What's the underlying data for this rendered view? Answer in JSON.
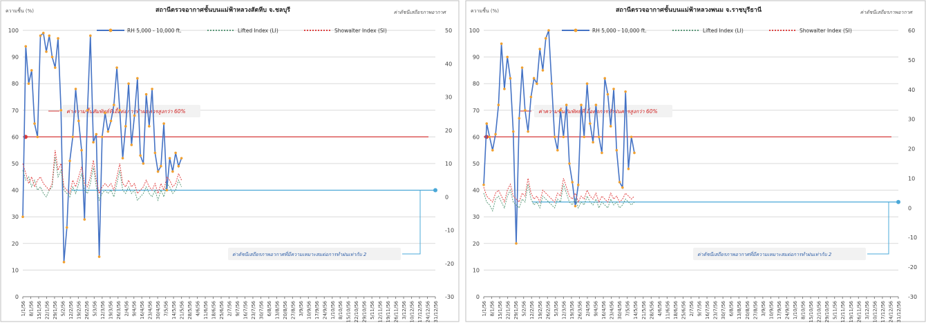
{
  "chart_data": [
    {
      "type": "line",
      "title": "สถานีตรวจอากาศชั้นบนแม่ฟ้าหลวงสัตหีบ จ.ชลบุรี",
      "right_note": "ค่าดัชนีเสถียรภาพอากาศ",
      "y_left_unit": "ความชื้น (%)",
      "ylim_left": [
        0,
        100
      ],
      "ylim_right": [
        -30,
        50
      ],
      "left_ticks": [
        0,
        10,
        20,
        30,
        40,
        50,
        60,
        70,
        80,
        90,
        100
      ],
      "right_ticks": [
        -30,
        -20,
        -10,
        0,
        10,
        20,
        30,
        40,
        50
      ],
      "x_ticks": [
        "1/1/56",
        "8/1/56",
        "15/1/56",
        "22/1/56",
        "29/1/56",
        "5/2/56",
        "12/2/56",
        "19/2/56",
        "26/2/56",
        "5/3/56",
        "12/3/56",
        "19/3/56",
        "26/3/56",
        "2/4/56",
        "9/4/56",
        "16/4/56",
        "23/4/56",
        "30/4/56",
        "7/5/56",
        "14/5/56",
        "21/5/56",
        "28/5/56",
        "4/6/56",
        "11/6/56",
        "18/6/56",
        "25/6/56",
        "2/7/56",
        "9/7/56",
        "16/7/56",
        "23/7/56",
        "30/7/56",
        "6/8/56",
        "13/8/56",
        "20/8/56",
        "27/8/56",
        "3/9/56",
        "10/9/56",
        "17/9/56",
        "24/9/56",
        "1/10/56",
        "8/10/56",
        "15/10/56",
        "22/10/56",
        "29/10/56",
        "5/11/56",
        "12/11/56",
        "19/11/56",
        "26/11/56",
        "3/12/56",
        "10/12/56",
        "17/12/56",
        "24/12/56",
        "31/12/56"
      ],
      "legend": [
        "RH 5,000 - 10,000 ft.",
        "Lifted Index (LI)",
        "Showalter Index (SI)"
      ],
      "rh_threshold": 60,
      "rh_threshold_label": "ค่าความชื้นสัมพัทธ์ที่เอื้อต่อการทำฝนควรสูงกว่า 60%",
      "stability_threshold": 2,
      "stability_threshold_label": "ค่าดัชนีเสถียรภาพอากาศที่มีความเหมาะสมต่อการทำฝนเท่ากับ 2",
      "series": [
        {
          "name": "RH 5,000 - 10,000 ft.",
          "axis": "left",
          "values": [
            30,
            94,
            80,
            85,
            65,
            60,
            98,
            99,
            92,
            98,
            90,
            86,
            97,
            70,
            13,
            26,
            51,
            60,
            78,
            66,
            55,
            29,
            70,
            98,
            58,
            61,
            15,
            60,
            69,
            62,
            66,
            72,
            86,
            70,
            52,
            64,
            80,
            57,
            68,
            82,
            53,
            50,
            76,
            64,
            78,
            54,
            47,
            49,
            65,
            40,
            52,
            47,
            54,
            49,
            52
          ]
        },
        {
          "name": "Lifted Index (LI)",
          "axis": "right",
          "values": [
            8,
            5,
            6,
            3,
            5,
            2,
            3,
            1,
            0,
            2,
            3,
            12,
            6,
            8,
            2,
            1,
            0,
            3,
            1,
            4,
            7,
            2,
            1,
            4,
            9,
            3,
            -1,
            1,
            2,
            1,
            2,
            0,
            4,
            8,
            2,
            1,
            3,
            1,
            2,
            -1,
            0,
            1,
            3,
            1,
            0,
            2,
            -1,
            2,
            0,
            4,
            3,
            1,
            2,
            5,
            3
          ]
        },
        {
          "name": "Showalter Index (SI)",
          "axis": "right",
          "values": [
            10,
            7,
            4,
            6,
            3,
            5,
            6,
            4,
            3,
            2,
            4,
            14,
            8,
            10,
            3,
            2,
            1,
            5,
            3,
            6,
            9,
            4,
            3,
            6,
            11,
            5,
            1,
            3,
            4,
            3,
            4,
            2,
            6,
            10,
            4,
            3,
            5,
            3,
            4,
            1,
            2,
            3,
            5,
            3,
            2,
            4,
            1,
            4,
            2,
            6,
            5,
            3,
            4,
            7,
            5
          ]
        }
      ]
    },
    {
      "type": "line",
      "title": "สถานีตรวจอากาศชั้นบนแม่ฟ้าหลวงพนม จ.ราชบุรีธานี",
      "right_note": "ค่าดัชนีเสถียรภาพอากาศ",
      "y_left_unit": "ความชื้น (%)",
      "ylim_left": [
        0,
        100
      ],
      "ylim_right": [
        -30,
        60
      ],
      "left_ticks": [
        0,
        10,
        20,
        30,
        40,
        50,
        60,
        70,
        80,
        90,
        100
      ],
      "right_ticks": [
        -30,
        -20,
        -10,
        0,
        10,
        20,
        30,
        40,
        50,
        60
      ],
      "x_ticks": [
        "1/1/56",
        "8/1/56",
        "15/1/56",
        "22/1/56",
        "29/1/56",
        "5/2/56",
        "12/2/56",
        "19/2/56",
        "26/2/56",
        "5/3/56",
        "12/3/56",
        "19/3/56",
        "26/3/56",
        "2/4/56",
        "9/4/56",
        "16/4/56",
        "23/4/56",
        "30/4/56",
        "7/5/56",
        "14/5/56",
        "21/5/56",
        "28/5/56",
        "4/6/56",
        "11/6/56",
        "18/6/56",
        "25/6/56",
        "2/7/56",
        "9/7/56",
        "16/7/56",
        "23/7/56",
        "30/7/56",
        "6/8/56",
        "13/8/56",
        "20/8/56",
        "27/8/56",
        "3/9/56",
        "10/9/56",
        "17/9/56",
        "24/9/56",
        "1/10/56",
        "8/10/56",
        "15/10/56",
        "22/10/56",
        "29/10/56",
        "5/11/56",
        "12/11/56",
        "19/11/56",
        "26/11/56",
        "3/12/56",
        "10/12/56",
        "17/12/56",
        "24/12/56",
        "31/12/56"
      ],
      "legend": [
        "RH 5,000 - 10,000 ft.",
        "Lifted Index (LI)",
        "Showalter Index (SI)"
      ],
      "rh_threshold": 60,
      "rh_threshold_label": "ค่าความชื้นสัมพัทธ์ที่เอื้อต่อการทำฝนควรสูงกว่า 60%",
      "stability_threshold": 2,
      "stability_threshold_label": "ค่าดัชนีเสถียรภาพอากาศที่มีความเหมาะสมต่อการทำฝนเท่ากับ 2",
      "series": [
        {
          "name": "RH 5,000 - 10,000 ft.",
          "axis": "left",
          "values": [
            42,
            65,
            60,
            55,
            61,
            72,
            95,
            78,
            90,
            82,
            62,
            20,
            67,
            86,
            70,
            62,
            75,
            82,
            80,
            93,
            85,
            97,
            100,
            80,
            60,
            55,
            70,
            60,
            72,
            50,
            43,
            34,
            42,
            72,
            60,
            80,
            65,
            58,
            72,
            60,
            54,
            82,
            76,
            64,
            78,
            55,
            43,
            41,
            77,
            48,
            60,
            54
          ]
        },
        {
          "name": "Lifted Index (LI)",
          "axis": "right",
          "values": [
            5,
            2,
            1,
            -1,
            3,
            4,
            2,
            0,
            4,
            6,
            2,
            1,
            0,
            3,
            2,
            8,
            3,
            1,
            2,
            0,
            4,
            3,
            2,
            1,
            0,
            3,
            2,
            8,
            5,
            2,
            1,
            3,
            0,
            2,
            1,
            4,
            2,
            1,
            3,
            0,
            2,
            1,
            0,
            3,
            1,
            2,
            0,
            1,
            3,
            2,
            1,
            2
          ]
        },
        {
          "name": "Showalter Index (SI)",
          "axis": "right",
          "values": [
            7,
            4,
            3,
            2,
            5,
            6,
            4,
            2,
            6,
            8,
            4,
            3,
            2,
            5,
            4,
            10,
            5,
            3,
            4,
            2,
            6,
            5,
            4,
            3,
            2,
            5,
            4,
            10,
            7,
            4,
            3,
            5,
            2,
            4,
            3,
            6,
            4,
            3,
            5,
            2,
            4,
            3,
            2,
            5,
            3,
            4,
            2,
            3,
            5,
            4,
            3,
            4
          ]
        }
      ]
    }
  ]
}
